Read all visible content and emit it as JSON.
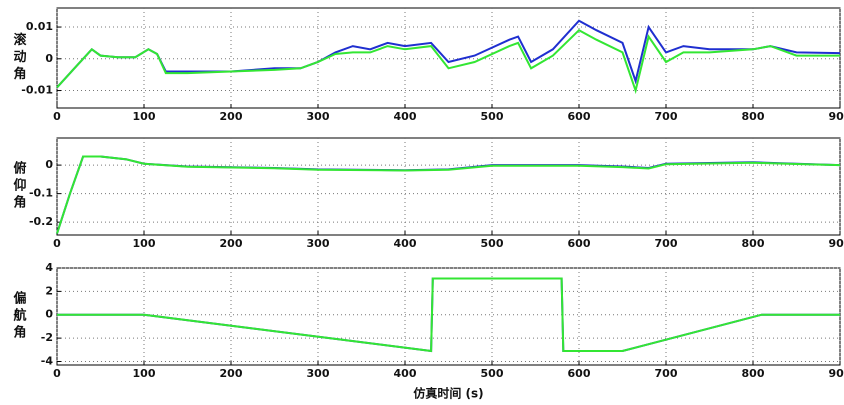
{
  "chart_data": [
    {
      "type": "line",
      "ylabel": "滚动角",
      "x": [
        0,
        20,
        40,
        50,
        70,
        90,
        105,
        115,
        125,
        150,
        200,
        250,
        280,
        300,
        320,
        340,
        360,
        380,
        400,
        430,
        450,
        480,
        520,
        530,
        545,
        570,
        600,
        620,
        650,
        665,
        680,
        700,
        720,
        750,
        800,
        820,
        850,
        900
      ],
      "series": [
        {
          "color": "#1f2fd0",
          "values": [
            -0.009,
            -0.003,
            0.003,
            0.001,
            0.0005,
            0.0005,
            0.003,
            0.0015,
            -0.004,
            -0.004,
            -0.004,
            -0.003,
            -0.003,
            -0.001,
            0.002,
            0.004,
            0.003,
            0.005,
            0.004,
            0.005,
            -0.001,
            0.001,
            0.006,
            0.007,
            -0.001,
            0.003,
            0.012,
            0.009,
            0.005,
            -0.007,
            0.01,
            0.002,
            0.004,
            0.003,
            0.003,
            0.004,
            0.002,
            0.0018
          ]
        },
        {
          "color": "#33e633",
          "values": [
            -0.009,
            -0.003,
            0.003,
            0.001,
            0.0005,
            0.0005,
            0.003,
            0.0015,
            -0.0045,
            -0.0045,
            -0.004,
            -0.0035,
            -0.003,
            -0.001,
            0.0015,
            0.002,
            0.002,
            0.004,
            0.003,
            0.004,
            -0.003,
            -0.001,
            0.004,
            0.005,
            -0.003,
            0.001,
            0.009,
            0.006,
            0.002,
            -0.01,
            0.007,
            -0.001,
            0.002,
            0.002,
            0.003,
            0.004,
            0.001,
            0.001
          ]
        }
      ],
      "xlim": [
        0,
        900
      ],
      "xticks": [
        0,
        100,
        200,
        300,
        400,
        500,
        600,
        700,
        800,
        900
      ],
      "ylim": [
        -0.0155,
        0.016
      ],
      "yticks": [
        -0.01,
        0,
        0.01
      ],
      "grid": true
    },
    {
      "type": "line",
      "ylabel": "俯仰角",
      "x": [
        0,
        15,
        30,
        50,
        80,
        100,
        150,
        250,
        300,
        400,
        450,
        500,
        600,
        650,
        680,
        700,
        800,
        850,
        900
      ],
      "series": [
        {
          "color": "#1f2fd0",
          "values": [
            -0.24,
            -0.1,
            0.03,
            0.03,
            0.02,
            0.005,
            -0.005,
            -0.01,
            -0.015,
            -0.018,
            -0.015,
            0.0,
            0.0,
            -0.005,
            -0.01,
            0.005,
            0.01,
            0.005,
            0.0
          ]
        },
        {
          "color": "#33e633",
          "values": [
            -0.24,
            -0.1,
            0.03,
            0.03,
            0.02,
            0.005,
            -0.006,
            -0.011,
            -0.016,
            -0.019,
            -0.016,
            -0.002,
            -0.002,
            -0.007,
            -0.012,
            0.003,
            0.008,
            0.004,
            0.0
          ]
        }
      ],
      "xlim": [
        0,
        900
      ],
      "xticks": [
        0,
        100,
        200,
        300,
        400,
        500,
        600,
        700,
        800,
        900
      ],
      "ylim": [
        -0.245,
        0.095
      ],
      "yticks": [
        -0.2,
        -0.1,
        0
      ],
      "grid": true
    },
    {
      "type": "line",
      "ylabel": "偏航角",
      "xlabel": "仿真时间 (s)",
      "x": [
        0,
        100,
        430,
        432,
        580,
        582,
        650,
        810,
        900
      ],
      "series": [
        {
          "color": "#1f2fd0",
          "values": [
            0,
            0,
            -3.1,
            3.1,
            3.1,
            -3.1,
            -3.1,
            0,
            0
          ]
        },
        {
          "color": "#33e633",
          "values": [
            0,
            0,
            -3.1,
            3.1,
            3.1,
            -3.1,
            -3.1,
            0,
            0
          ]
        }
      ],
      "xlim": [
        0,
        900
      ],
      "xticks": [
        0,
        100,
        200,
        300,
        400,
        500,
        600,
        700,
        800,
        900
      ],
      "ylim": [
        -4.3,
        4
      ],
      "yticks": [
        -4,
        -2,
        0,
        2,
        4
      ],
      "grid": true
    }
  ]
}
